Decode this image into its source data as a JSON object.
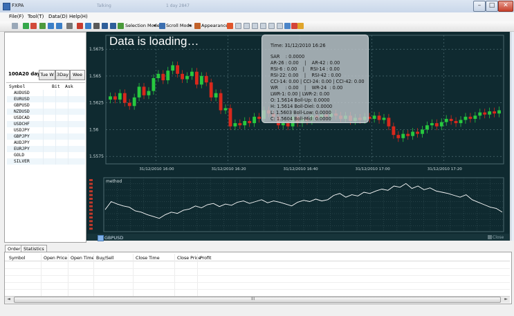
{
  "window": {
    "title": "FXPA",
    "faint_tabs": [
      "Talking",
      "1 day 2847"
    ]
  },
  "menu": [
    "File(F)",
    "Tool(T)",
    "Data(D)",
    "Help(H)"
  ],
  "toolbar": {
    "selection_mode": "Selection Mode",
    "scroll_mode": "Scroll Mode",
    "appearance": "Appearance"
  },
  "left": {
    "range_label": "100A20 day",
    "range_buttons": [
      "Tue W",
      "3Day",
      "Wee"
    ],
    "watchlist_header": {
      "symbol": "Symbol",
      "bid": "Bit",
      "ask": "Ask"
    },
    "watchlist": [
      "AUDUSD",
      "EURUSD",
      "GBPUSD",
      "NZDUSD",
      "USDCAD",
      "USDCHF",
      "USDJPY",
      "GBPJPY",
      "AUDJPY",
      "EURJPY",
      "GOLD",
      "SILVER"
    ]
  },
  "chart": {
    "loading_text": "Data is loading…",
    "y_ticks": [
      "1.5675",
      "1.565",
      "1.5625",
      "1.56",
      "1.5575"
    ],
    "x_ticks": [
      "31/12/2010 16:00",
      "31/12/2010 16:20",
      "31/12/2010 16:40",
      "31/12/2010 17:00",
      "31/12/2010 17:20"
    ],
    "indicator_label": "method",
    "symbol_tab": "GBPUSD",
    "close_label": "Close",
    "colors": {
      "background": "#0f2a30",
      "up": "#27c93f",
      "down": "#d8281c",
      "line": "#ffffff"
    }
  },
  "tooltip": [
    "Time: 31/12/2010 16:26",
    "SAR    : 0.0000",
    "AR-26 : 0.00    |    AR-42 : 0.00",
    "RSI-6 : 0.00    |    RSI-14 : 0.00",
    "RSI-22: 0.00    |    RSI-42 : 0.00",
    "CCI-14: 0.00 | CCI-24: 0.00 | CCI-42: 0.00",
    "WR     : 0.00    |    WR-24  : 0.00",
    "LWR-1: 0.00 | LWR-2: 0.00",
    "O: 1.5614 Boll-Up: 0.0000",
    "H: 1.5614 Boll-Diel: 0.0000",
    "L: 1.5603 Boll-Low: 0.0000",
    "C: 1.5604 Boll-Mid: 0.0000"
  ],
  "bottom": {
    "tabs": [
      "Orders",
      "Statistics"
    ],
    "columns": [
      "Symbol",
      "Open Price",
      "Open Time",
      "Buy/Sell",
      "Close Time",
      "Close Price",
      "Profit"
    ],
    "scroll_mark": "III"
  },
  "chart_data": [
    {
      "type": "candlestick",
      "title": "",
      "ylim": [
        1.5568,
        1.5688
      ],
      "y_ticks": [
        1.5675,
        1.565,
        1.5625,
        1.56,
        1.5575
      ],
      "x_ticks": [
        "31/12/2010 16:00",
        "31/12/2010 16:20",
        "31/12/2010 16:40",
        "31/12/2010 17:00",
        "31/12/2010 17:20"
      ],
      "close": [
        1.5631,
        1.5628,
        1.5634,
        1.5625,
        1.5622,
        1.563,
        1.564,
        1.5632,
        1.5636,
        1.5648,
        1.5652,
        1.5646,
        1.5655,
        1.566,
        1.5652,
        1.5647,
        1.565,
        1.5654,
        1.5642,
        1.565,
        1.5644,
        1.563,
        1.5634,
        1.5618,
        1.562,
        1.5603,
        1.5606,
        1.5604,
        1.5608,
        1.5606,
        1.5612,
        1.561,
        1.5618,
        1.5615,
        1.5612,
        1.5604,
        1.5606,
        1.5603,
        1.5612,
        1.5606,
        1.561,
        1.5608,
        1.5613,
        1.5611,
        1.5614,
        1.5612,
        1.5615,
        1.5613,
        1.561,
        1.5613,
        1.5608,
        1.5611,
        1.5609,
        1.5612,
        1.561,
        1.5613,
        1.5609,
        1.5611,
        1.5603,
        1.5595,
        1.5592,
        1.5596,
        1.5594,
        1.5598,
        1.5596,
        1.56,
        1.5604,
        1.5606,
        1.5603,
        1.5607,
        1.561,
        1.5608,
        1.5606,
        1.5609,
        1.5612,
        1.561,
        1.5613,
        1.5616,
        1.5614,
        1.5617,
        1.5615,
        1.5618
      ]
    },
    {
      "type": "line",
      "title": "",
      "series": [
        {
          "name": "method",
          "values": [
            32,
            45,
            41,
            38,
            36,
            30,
            28,
            24,
            21,
            18,
            24,
            28,
            26,
            31,
            33,
            38,
            35,
            40,
            42,
            37,
            41,
            39,
            44,
            46,
            42,
            45,
            48,
            43,
            46,
            44,
            41,
            38,
            44,
            47,
            45,
            49,
            46,
            48,
            55,
            58,
            52,
            56,
            54,
            60,
            58,
            62,
            65,
            63,
            70,
            68,
            74,
            66,
            70,
            64,
            67,
            62,
            60,
            58,
            55,
            52,
            56,
            48,
            44,
            40,
            36,
            34,
            28
          ]
        }
      ]
    }
  ]
}
